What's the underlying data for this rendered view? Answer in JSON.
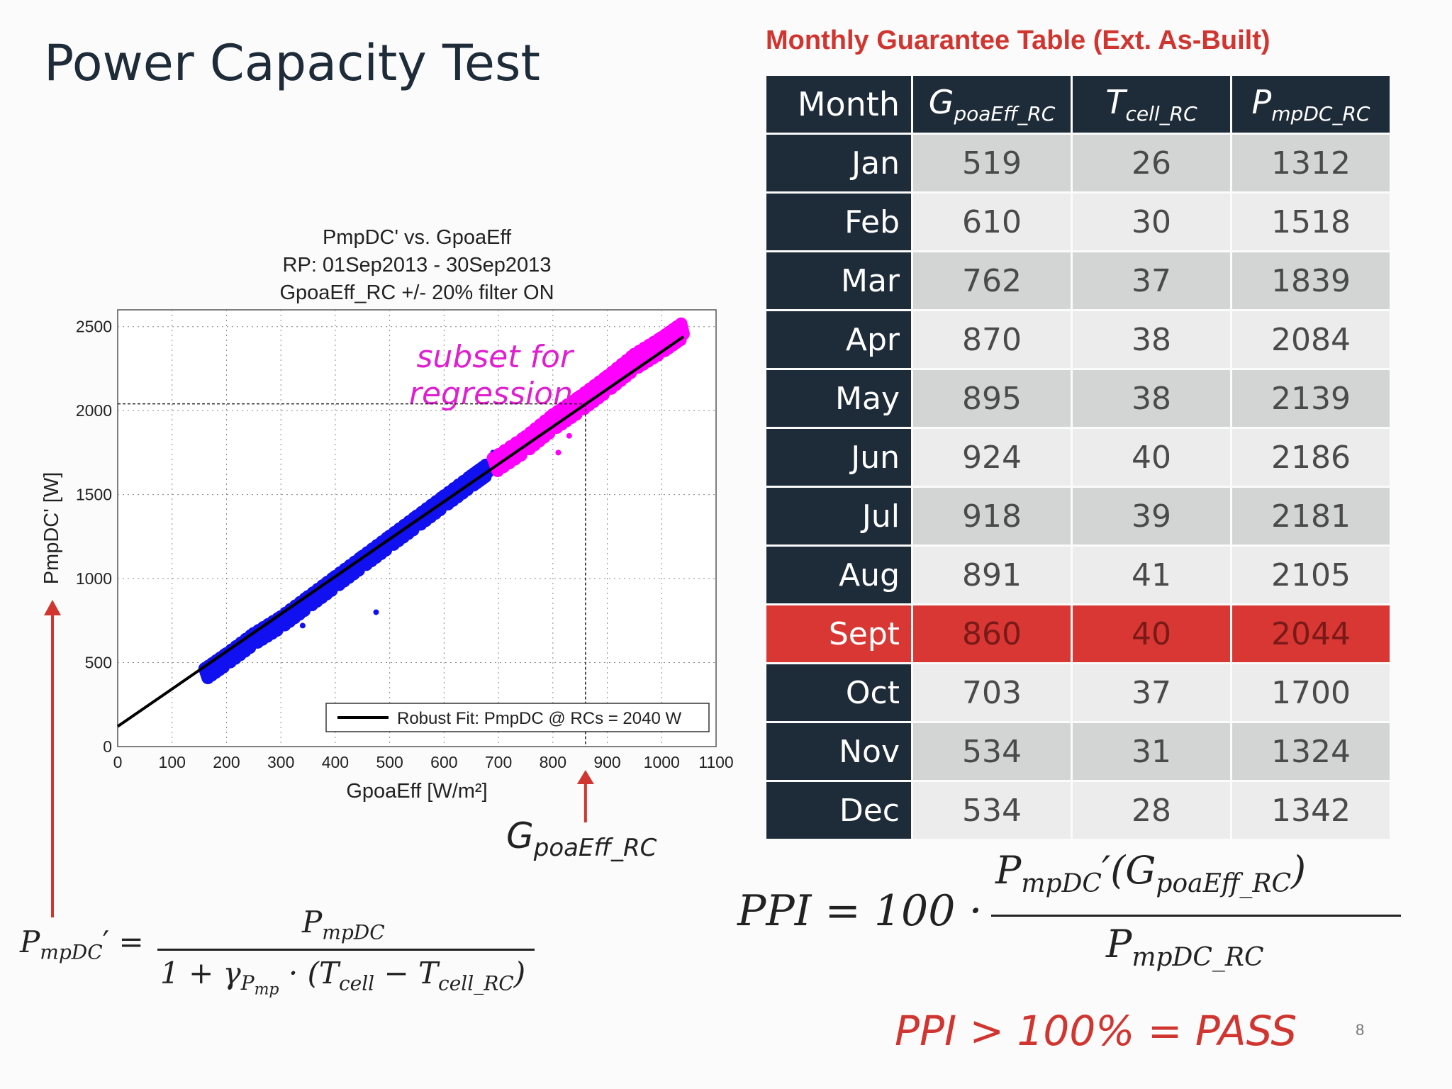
{
  "slide": {
    "title": "Power Capacity Test",
    "page_number": "8",
    "pass_text": "PPI > 100% = PASS",
    "accent_color": "#d03530",
    "navy_color": "#1e2b38"
  },
  "table": {
    "title": "Monthly Guarantee Table (Ext. As-Built)",
    "headers": {
      "month": "Month",
      "g": {
        "main": "G",
        "sub": "poaEff_RC"
      },
      "t": {
        "main": "T",
        "sub": "cell_RC"
      },
      "p": {
        "main": "P",
        "sub": "mpDC_RC"
      }
    },
    "highlight_month": "Sept",
    "rows": [
      {
        "month": "Jan",
        "g": "519",
        "t": "26",
        "p": "1312"
      },
      {
        "month": "Feb",
        "g": "610",
        "t": "30",
        "p": "1518"
      },
      {
        "month": "Mar",
        "g": "762",
        "t": "37",
        "p": "1839"
      },
      {
        "month": "Apr",
        "g": "870",
        "t": "38",
        "p": "2084"
      },
      {
        "month": "May",
        "g": "895",
        "t": "38",
        "p": "2139"
      },
      {
        "month": "Jun",
        "g": "924",
        "t": "40",
        "p": "2186"
      },
      {
        "month": "Jul",
        "g": "918",
        "t": "39",
        "p": "2181"
      },
      {
        "month": "Aug",
        "g": "891",
        "t": "41",
        "p": "2105"
      },
      {
        "month": "Sept",
        "g": "860",
        "t": "40",
        "p": "2044"
      },
      {
        "month": "Oct",
        "g": "703",
        "t": "37",
        "p": "1700"
      },
      {
        "month": "Nov",
        "g": "534",
        "t": "31",
        "p": "1324"
      },
      {
        "month": "Dec",
        "g": "534",
        "t": "28",
        "p": "1342"
      }
    ]
  },
  "chart_data": {
    "type": "scatter",
    "title_lines": [
      "PmpDC' vs. GpoaEff",
      "RP: 01Sep2013 - 30Sep2013",
      "GpoaEff_RC +/- 20% filter ON"
    ],
    "xlabel": "GpoaEff [W/m²]",
    "ylabel": "PmpDC' [W]",
    "xlim": [
      0,
      1100
    ],
    "ylim": [
      0,
      2600
    ],
    "xticks": [
      0,
      100,
      200,
      300,
      400,
      500,
      600,
      700,
      800,
      900,
      1000,
      1100
    ],
    "yticks": [
      0,
      500,
      1000,
      1500,
      2000,
      2500
    ],
    "grid": true,
    "legend_position": "bottom-right",
    "series": [
      {
        "color": "#1010f0",
        "points": [
          [
            160,
            430
          ],
          [
            200,
            520
          ],
          [
            250,
            640
          ],
          [
            300,
            740
          ],
          [
            350,
            860
          ],
          [
            400,
            980
          ],
          [
            450,
            1100
          ],
          [
            500,
            1220
          ],
          [
            550,
            1340
          ],
          [
            600,
            1460
          ],
          [
            650,
            1580
          ],
          [
            680,
            1650
          ]
        ],
        "outliers": [
          [
            340,
            720
          ],
          [
            475,
            800
          ],
          [
            690,
            1750
          ],
          [
            730,
            1800
          ]
        ]
      },
      {
        "color": "#ff00ff",
        "points": [
          [
            690,
            1670
          ],
          [
            750,
            1800
          ],
          [
            800,
            1930
          ],
          [
            850,
            2040
          ],
          [
            900,
            2160
          ],
          [
            950,
            2290
          ],
          [
            1000,
            2390
          ],
          [
            1040,
            2480
          ]
        ],
        "outliers": [
          [
            830,
            1850
          ],
          [
            810,
            1750
          ]
        ]
      }
    ],
    "fit_line": {
      "label": "Robust Fit: PmpDC @ RCs = 2040 W",
      "x": [
        0,
        1040
      ],
      "y": [
        120,
        2440
      ],
      "color": "#000000"
    },
    "reference": {
      "x": 860,
      "y": 2040
    },
    "annotation": "subset for regression",
    "annotation_color": "#e020d0"
  },
  "annotations": {
    "g_label": {
      "main": "G",
      "sub": "poaEff_RC"
    },
    "pprime_formula": {
      "lhs_main": "P",
      "lhs_sub": "mpDC",
      "lhs_prime": "′ =",
      "num_main": "P",
      "num_sub": "mpDC",
      "den_prefix": "1 + γ",
      "den_gamma_sub": "P",
      "den_gamma_subsub": "mp",
      "den_mid": " · (T",
      "den_t1_sub": "cell",
      "den_minus": " − T",
      "den_t2_sub": "cell_RC",
      "den_end": ")"
    },
    "ppi_formula": {
      "lhs": "PPI = 100 ·",
      "num_main": "P",
      "num_sub": "mpDC",
      "num_prime": "′(G",
      "num_g_sub": "poaEff_RC",
      "num_end": ")",
      "den_main": "P",
      "den_sub": "mpDC_RC"
    }
  }
}
